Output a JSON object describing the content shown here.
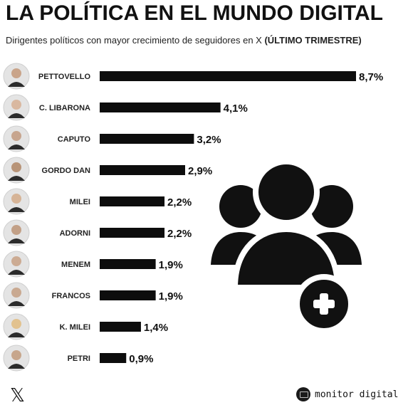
{
  "header": {
    "title": "LA POLÍTICA EN EL MUNDO DIGITAL",
    "subtitle_main": "Dirigentes políticos con mayor crecimiento de seguidores en X ",
    "subtitle_bold": "(ÚLTIMO TRIMESTRE)"
  },
  "footer": {
    "x_logo": "𝕏",
    "brand": "monitor digital"
  },
  "colors": {
    "bar": "#0d0d0d",
    "text": "#111111",
    "icon": "#111111"
  },
  "icons": {
    "avatar": "person-photo-icon",
    "big_icon": "add-group-icon"
  },
  "chart_data": {
    "type": "bar",
    "orientation": "horizontal",
    "categories": [
      "PETTOVELLO",
      "C. LIBARONA",
      "CAPUTO",
      "GORDO DAN",
      "MILEI",
      "ADORNI",
      "MENEM",
      "FRANCOS",
      "K. MILEI",
      "PETRI"
    ],
    "values": [
      8.7,
      4.1,
      3.2,
      2.9,
      2.2,
      2.2,
      1.9,
      1.9,
      1.4,
      0.9
    ],
    "labels": [
      "8,7%",
      "4,1%",
      "3,2%",
      "2,9%",
      "2,2%",
      "2,2%",
      "1,9%",
      "1,9%",
      "1,4%",
      "0,9%"
    ],
    "unit": "%",
    "xlim": [
      0,
      8.7
    ],
    "grid": false,
    "legend": "none"
  }
}
